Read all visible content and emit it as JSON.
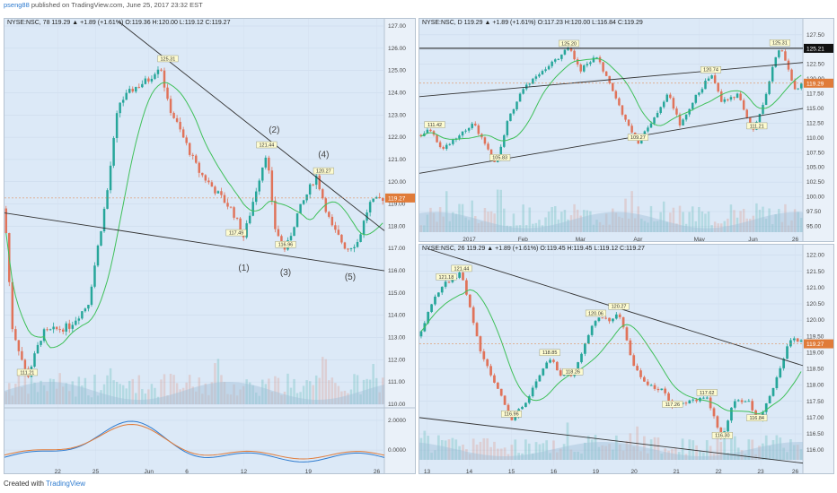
{
  "header": {
    "user": "pseng88",
    "rest": " published on TradingView.com, June 25, 2017 23:32 EST"
  },
  "footer": {
    "created": "Created with",
    "brand": "TradingView"
  },
  "colors": {
    "up": "#26a69a",
    "down": "#e0735a",
    "ma": "#3fc05a",
    "trend": "#333333",
    "price": "#e07b39",
    "blue": "#2e7bcf",
    "vol": "#9fbfd8"
  },
  "chart_data": [
    {
      "id": "p78",
      "type": "candlestick",
      "title": "NYSE:NSC, 78 119.29 ▲ +1.89 (+1.61%) O:119.36 H:120.00 L:119.12 C:119.27",
      "ylim": [
        110,
        127
      ],
      "yticks": [
        "127.00",
        "126.00",
        "125.00",
        "124.00",
        "123.00",
        "122.00",
        "121.00",
        "120.00",
        "119.00",
        "118.00",
        "117.00",
        "116.00",
        "115.00",
        "114.00",
        "113.00",
        "112.00",
        "111.00",
        "110.00"
      ],
      "xticks": [
        "22",
        "25",
        "Jun",
        "6",
        "12",
        "19",
        "26"
      ],
      "xtick_pos": [
        0.14,
        0.24,
        0.38,
        0.48,
        0.63,
        0.8,
        0.98
      ],
      "price_label": "119.27",
      "indicator_ticks": [
        "2.0000",
        "0.0000"
      ],
      "anchors": [
        [
          0,
          118.8
        ],
        [
          0.02,
          113.5
        ],
        [
          0.06,
          111.2
        ],
        [
          0.1,
          113.2
        ],
        [
          0.17,
          113.5
        ],
        [
          0.22,
          114.5
        ],
        [
          0.27,
          119.5
        ],
        [
          0.3,
          123.5
        ],
        [
          0.34,
          124.2
        ],
        [
          0.38,
          124.6
        ],
        [
          0.41,
          125.3
        ],
        [
          0.43,
          123.5
        ],
        [
          0.47,
          122.0
        ],
        [
          0.51,
          120.5
        ],
        [
          0.55,
          119.7
        ],
        [
          0.6,
          118.7
        ],
        [
          0.63,
          117.5
        ],
        [
          0.66,
          119.5
        ],
        [
          0.69,
          121.4
        ],
        [
          0.71,
          118.0
        ],
        [
          0.74,
          116.9
        ],
        [
          0.77,
          118.5
        ],
        [
          0.82,
          120.3
        ],
        [
          0.86,
          118.0
        ],
        [
          0.9,
          117.0
        ],
        [
          0.93,
          117.3
        ],
        [
          0.96,
          119.0
        ],
        [
          1,
          119.3
        ]
      ],
      "labels": [
        {
          "x": 0.06,
          "y": 111.21,
          "text": "111.21"
        },
        {
          "x": 0.43,
          "y": 125.31,
          "text": "125.31"
        },
        {
          "x": 0.61,
          "y": 117.49,
          "text": "117.49"
        },
        {
          "x": 0.69,
          "y": 121.44,
          "text": "121.44"
        },
        {
          "x": 0.74,
          "y": 116.96,
          "text": "116.96"
        },
        {
          "x": 0.84,
          "y": 120.27,
          "text": "120.27"
        }
      ],
      "waves": [
        {
          "x": 0.63,
          "y": 116.0,
          "text": "(1)"
        },
        {
          "x": 0.71,
          "y": 122.2,
          "text": "(2)"
        },
        {
          "x": 0.74,
          "y": 115.8,
          "text": "(3)"
        },
        {
          "x": 0.84,
          "y": 121.1,
          "text": "(4)"
        },
        {
          "x": 0.91,
          "y": 115.6,
          "text": "(5)"
        }
      ],
      "trendlines": [
        [
          [
            0.3,
            127.2
          ],
          [
            1,
            117.8
          ]
        ],
        [
          [
            0,
            118.6
          ],
          [
            1,
            116.0
          ]
        ]
      ]
    },
    {
      "id": "pD",
      "type": "candlestick",
      "title": "NYSE:NSC, D 119.29 ▲ +1.89 (+1.61%) O:117.23 H:120.00 L:116.84 C:119.29",
      "ylim": [
        94,
        129
      ],
      "yticks": [
        "127.50",
        "125.00",
        "122.50",
        "120.00",
        "117.50",
        "115.00",
        "112.50",
        "110.00",
        "107.50",
        "105.00",
        "102.50",
        "100.00",
        "97.50",
        "95.00"
      ],
      "xticks": [
        "2017",
        "Feb",
        "Mar",
        "Apr",
        "May",
        "Jun",
        "26"
      ],
      "xtick_pos": [
        0.13,
        0.27,
        0.42,
        0.57,
        0.73,
        0.87,
        0.98
      ],
      "price_label": "119.29",
      "level_label": "125.21",
      "level": 125.21,
      "anchors": [
        [
          0,
          110.5
        ],
        [
          0.03,
          111.4
        ],
        [
          0.06,
          108.0
        ],
        [
          0.1,
          110.5
        ],
        [
          0.14,
          112.5
        ],
        [
          0.2,
          105.5
        ],
        [
          0.23,
          113.0
        ],
        [
          0.27,
          118.5
        ],
        [
          0.33,
          122.0
        ],
        [
          0.39,
          125.2
        ],
        [
          0.42,
          121.5
        ],
        [
          0.46,
          124.0
        ],
        [
          0.5,
          118.5
        ],
        [
          0.54,
          112.5
        ],
        [
          0.57,
          109.3
        ],
        [
          0.61,
          113.0
        ],
        [
          0.65,
          117.5
        ],
        [
          0.68,
          112.0
        ],
        [
          0.72,
          117.0
        ],
        [
          0.76,
          120.7
        ],
        [
          0.79,
          116.0
        ],
        [
          0.83,
          117.5
        ],
        [
          0.87,
          111.2
        ],
        [
          0.9,
          116.5
        ],
        [
          0.92,
          122.0
        ],
        [
          0.94,
          125.2
        ],
        [
          0.96,
          122.5
        ],
        [
          0.98,
          118.0
        ],
        [
          1,
          119.3
        ]
      ],
      "labels": [
        {
          "x": 0.04,
          "y": 111.42,
          "text": "111.42"
        },
        {
          "x": 0.21,
          "y": 105.83,
          "text": "105.83"
        },
        {
          "x": 0.39,
          "y": 125.2,
          "text": "125.20"
        },
        {
          "x": 0.57,
          "y": 109.27,
          "text": "109.27"
        },
        {
          "x": 0.76,
          "y": 120.74,
          "text": "120.74"
        },
        {
          "x": 0.88,
          "y": 111.21,
          "text": "111.21"
        },
        {
          "x": 0.94,
          "y": 125.31,
          "text": "125.31"
        }
      ],
      "waves": [],
      "trendlines": [
        [
          [
            0,
            117.0
          ],
          [
            1,
            122.8
          ]
        ],
        [
          [
            0,
            104.0
          ],
          [
            1,
            115.0
          ]
        ]
      ]
    },
    {
      "id": "p26",
      "type": "candlestick",
      "title": "NYSE:NSC, 26 119.29 ▲ +1.89 (+1.61%) O:119.45 H:119.45 L:119.12 C:119.27",
      "ylim": [
        115.7,
        122.1
      ],
      "yticks": [
        "122.00",
        "121.50",
        "121.00",
        "120.50",
        "120.00",
        "119.50",
        "119.00",
        "118.50",
        "118.00",
        "117.50",
        "117.00",
        "116.50",
        "116.00"
      ],
      "xticks": [
        "13",
        "14",
        "15",
        "16",
        "19",
        "20",
        "21",
        "22",
        "23",
        "26"
      ],
      "xtick_pos": [
        0.02,
        0.13,
        0.24,
        0.35,
        0.46,
        0.56,
        0.67,
        0.78,
        0.89,
        0.98
      ],
      "price_label": "119.27",
      "anchors": [
        [
          0,
          119.5
        ],
        [
          0.03,
          120.5
        ],
        [
          0.07,
          121.18
        ],
        [
          0.11,
          121.44
        ],
        [
          0.13,
          120.5
        ],
        [
          0.16,
          119.0
        ],
        [
          0.2,
          118.0
        ],
        [
          0.24,
          116.96
        ],
        [
          0.28,
          117.5
        ],
        [
          0.32,
          118.5
        ],
        [
          0.34,
          118.85
        ],
        [
          0.37,
          118.3
        ],
        [
          0.4,
          118.26
        ],
        [
          0.44,
          119.5
        ],
        [
          0.46,
          120.06
        ],
        [
          0.5,
          120.0
        ],
        [
          0.52,
          120.27
        ],
        [
          0.56,
          118.5
        ],
        [
          0.6,
          118.0
        ],
        [
          0.64,
          117.8
        ],
        [
          0.66,
          117.26
        ],
        [
          0.7,
          117.5
        ],
        [
          0.75,
          117.62
        ],
        [
          0.79,
          116.3
        ],
        [
          0.82,
          117.5
        ],
        [
          0.86,
          117.5
        ],
        [
          0.88,
          116.84
        ],
        [
          0.91,
          117.5
        ],
        [
          0.94,
          118.5
        ],
        [
          0.97,
          119.5
        ],
        [
          1,
          119.3
        ]
      ],
      "labels": [
        {
          "x": 0.07,
          "y": 121.18,
          "text": "121.18"
        },
        {
          "x": 0.11,
          "y": 121.44,
          "text": "121.44"
        },
        {
          "x": 0.24,
          "y": 116.96,
          "text": "116.96"
        },
        {
          "x": 0.34,
          "y": 118.85,
          "text": "118.85"
        },
        {
          "x": 0.4,
          "y": 118.26,
          "text": "118.26"
        },
        {
          "x": 0.46,
          "y": 120.06,
          "text": "120.06"
        },
        {
          "x": 0.52,
          "y": 120.27,
          "text": "120.27"
        },
        {
          "x": 0.66,
          "y": 117.26,
          "text": "117.26"
        },
        {
          "x": 0.75,
          "y": 117.62,
          "text": "117.62"
        },
        {
          "x": 0.79,
          "y": 116.3,
          "text": "116.30"
        },
        {
          "x": 0.88,
          "y": 116.84,
          "text": "116.84"
        }
      ],
      "waves": [],
      "trendlines": [
        [
          [
            0.02,
            122.2
          ],
          [
            1,
            118.6
          ]
        ],
        [
          [
            0,
            117.0
          ],
          [
            1,
            115.6
          ]
        ]
      ]
    }
  ]
}
